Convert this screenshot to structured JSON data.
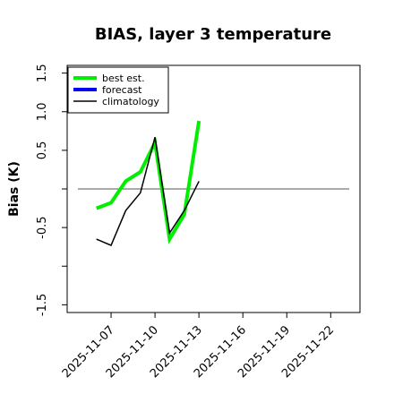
{
  "chart_data": {
    "type": "line",
    "title": "BIAS, layer 3 temperature",
    "ylabel": "Bias (K)",
    "xlabel": "",
    "ylim": [
      -1.6,
      1.6
    ],
    "yticks": [
      -1.5,
      -0.5,
      0.5,
      1.0,
      1.5
    ],
    "yminor_ticks": [
      -1.0,
      0.0
    ],
    "xlim": [
      "2025-11-04",
      "2025-11-24"
    ],
    "xticks": [
      "2025-11-07",
      "2025-11-10",
      "2025-11-13",
      "2025-11-16",
      "2025-11-19",
      "2025-11-22"
    ],
    "highlight_xtick": "2025-11-13",
    "highlight_color": "#2e7d32",
    "reference_line": 0.0,
    "legend_position": "top-left",
    "series": [
      {
        "name": "best est.",
        "color": "#00ee00",
        "x": [
          "2025-11-06",
          "2025-11-07",
          "2025-11-08",
          "2025-11-09",
          "2025-11-10",
          "2025-11-11",
          "2025-11-12",
          "2025-11-13"
        ],
        "y": [
          -0.25,
          -0.18,
          0.1,
          0.22,
          0.6,
          -0.65,
          -0.33,
          0.88
        ]
      },
      {
        "name": "forecast",
        "color": "#0000ff",
        "x": [],
        "y": []
      },
      {
        "name": "climatology",
        "color": "#000000",
        "x": [
          "2025-11-06",
          "2025-11-07",
          "2025-11-08",
          "2025-11-09",
          "2025-11-10",
          "2025-11-11",
          "2025-11-12",
          "2025-11-13"
        ],
        "y": [
          -0.65,
          -0.73,
          -0.28,
          -0.05,
          0.67,
          -0.57,
          -0.28,
          0.1
        ]
      }
    ]
  }
}
